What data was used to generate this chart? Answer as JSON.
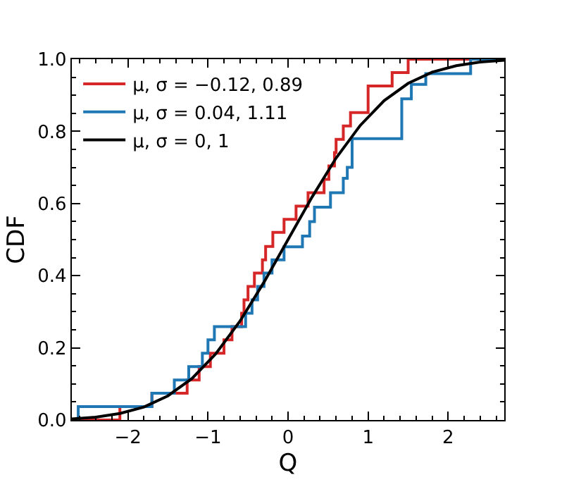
{
  "chart_data": {
    "type": "step",
    "xlabel": "Q",
    "ylabel": "CDF",
    "xlim": [
      -2.7,
      2.7
    ],
    "ylim": [
      0,
      1
    ],
    "xticks": [
      {
        "value": -2,
        "label": "−2"
      },
      {
        "value": -1,
        "label": "−1"
      },
      0,
      1,
      2
    ],
    "yticks": [
      {
        "value": 0,
        "label": "0.0"
      },
      0.2,
      0.4,
      0.6,
      0.8,
      {
        "value": 1,
        "label": "1.0"
      }
    ],
    "grid": false,
    "legend": "top left",
    "line_style": "solid",
    "marker": "none",
    "series": [
      {
        "name": "μ, σ = −0.12, 0.89",
        "color": "#d62728",
        "x": [
          -2.7,
          -2.1,
          -1.7,
          -1.26,
          -1.11,
          -0.97,
          -0.8,
          -0.7,
          -0.58,
          -0.55,
          -0.5,
          -0.42,
          -0.32,
          -0.28,
          -0.19,
          -0.05,
          0.1,
          0.25,
          0.45,
          0.51,
          0.58,
          0.6,
          0.69,
          0.78,
          1.0,
          1.3,
          1.5,
          2.7
        ],
        "values": [
          0,
          0.037,
          0.074,
          0.111,
          0.148,
          0.185,
          0.222,
          0.259,
          0.296,
          0.333,
          0.37,
          0.407,
          0.444,
          0.481,
          0.52,
          0.556,
          0.593,
          0.63,
          0.667,
          0.704,
          0.741,
          0.778,
          0.815,
          0.852,
          0.926,
          0.963,
          1.0,
          1.0
        ]
      },
      {
        "name": "μ, σ = 0.04, 1.11",
        "color": "#1f77b4",
        "x": [
          -2.7,
          -2.62,
          -1.7,
          -1.42,
          -1.24,
          -1.07,
          -1.0,
          -0.92,
          -0.53,
          -0.45,
          -0.38,
          -0.3,
          -0.2,
          -0.05,
          0.18,
          0.27,
          0.33,
          0.53,
          0.69,
          0.74,
          0.8,
          1.42,
          1.54,
          1.72,
          2.28,
          2.7
        ],
        "values": [
          0,
          0.037,
          0.074,
          0.111,
          0.148,
          0.185,
          0.222,
          0.259,
          0.296,
          0.333,
          0.37,
          0.407,
          0.444,
          0.48,
          0.51,
          0.55,
          0.59,
          0.63,
          0.67,
          0.7,
          0.78,
          0.89,
          0.93,
          0.96,
          1.0,
          1.0
        ]
      },
      {
        "name": "μ, σ = 0, 1",
        "color": "#000000",
        "type": "line",
        "x": [
          -2.7,
          -2.4,
          -2.1,
          -1.8,
          -1.5,
          -1.2,
          -0.9,
          -0.6,
          -0.3,
          0,
          0.3,
          0.6,
          0.9,
          1.2,
          1.5,
          1.8,
          2.1,
          2.4,
          2.7
        ],
        "values": [
          0.003,
          0.008,
          0.018,
          0.036,
          0.067,
          0.115,
          0.184,
          0.274,
          0.382,
          0.5,
          0.618,
          0.726,
          0.816,
          0.885,
          0.933,
          0.964,
          0.982,
          0.992,
          0.997
        ]
      }
    ]
  }
}
